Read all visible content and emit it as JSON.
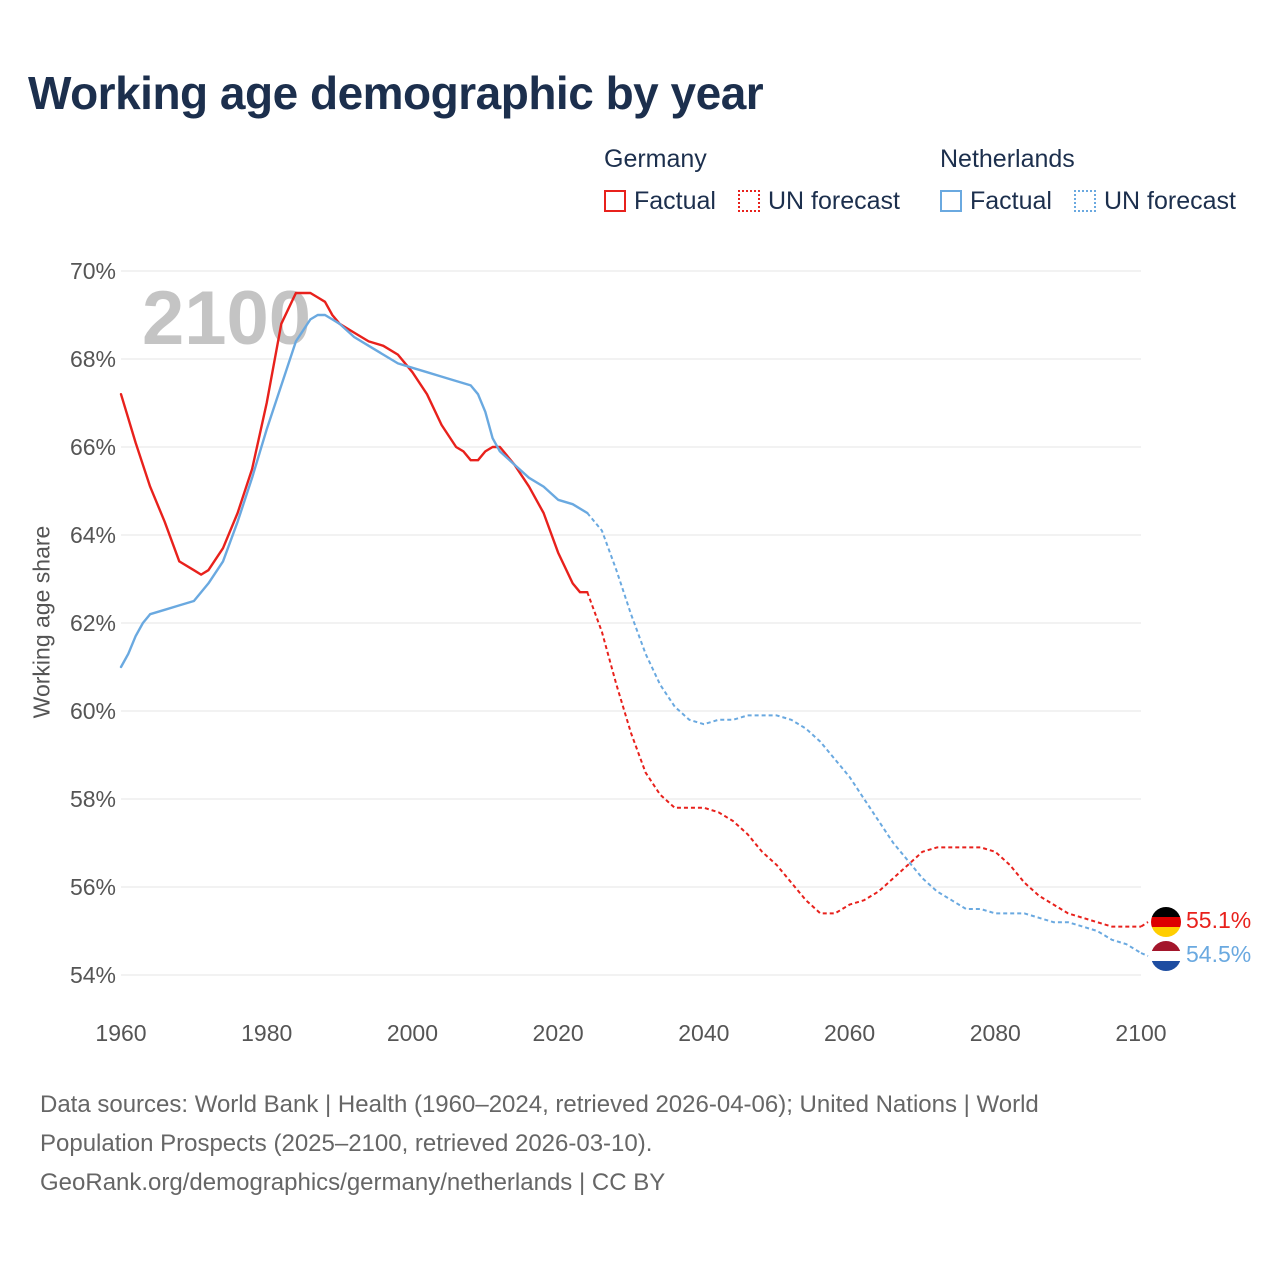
{
  "title": "Working age demographic by year",
  "legend": {
    "groups": [
      {
        "name": "Germany",
        "color": "#e8211c",
        "items": [
          {
            "label": "Factual",
            "style": "solid"
          },
          {
            "label": "UN forecast",
            "style": "dotted"
          }
        ]
      },
      {
        "name": "Netherlands",
        "color": "#6aa9e0",
        "items": [
          {
            "label": "Factual",
            "style": "solid"
          },
          {
            "label": "UN forecast",
            "style": "dotted"
          }
        ]
      }
    ]
  },
  "year_overlay": "2100",
  "end_labels": {
    "germany": "55.1%",
    "netherlands": "54.5%"
  },
  "footer": {
    "line1": "Data sources: World Bank | Health (1960–2024, retrieved 2026-04-06); United Nations | World",
    "line2": "Population Prospects (2025–2100, retrieved 2026-03-10).",
    "line3": "GeoRank.org/demographics/germany/netherlands | CC BY"
  },
  "chart_data": {
    "type": "line",
    "title": "Working age demographic by year",
    "xlabel": "",
    "ylabel": "Working age share",
    "xlim": [
      1960,
      2100
    ],
    "ylim": [
      54,
      70
    ],
    "x_ticks": [
      1960,
      1980,
      2000,
      2020,
      2040,
      2060,
      2080,
      2100
    ],
    "y_ticks": [
      54,
      56,
      58,
      60,
      62,
      64,
      66,
      68,
      70
    ],
    "y_tick_labels": [
      "54%",
      "56%",
      "58%",
      "60%",
      "62%",
      "64%",
      "66%",
      "68%",
      "70%"
    ],
    "x_tick_labels": [
      "1960",
      "1980",
      "2000",
      "2020",
      "2040",
      "2060",
      "2080",
      "2100"
    ],
    "grid": "horizontal",
    "series": [
      {
        "name": "Germany",
        "kind": "Factual",
        "color": "#e8211c",
        "style": "solid",
        "x": [
          1960,
          1962,
          1964,
          1966,
          1968,
          1970,
          1971,
          1972,
          1974,
          1976,
          1978,
          1980,
          1982,
          1984,
          1985,
          1986,
          1987,
          1988,
          1989,
          1990,
          1992,
          1994,
          1996,
          1998,
          2000,
          2002,
          2004,
          2006,
          2007,
          2008,
          2009,
          2010,
          2011,
          2012,
          2014,
          2016,
          2018,
          2020,
          2022,
          2023,
          2024
        ],
        "y": [
          67.2,
          66.1,
          65.1,
          64.3,
          63.4,
          63.2,
          63.1,
          63.2,
          63.7,
          64.5,
          65.5,
          67.0,
          68.8,
          69.5,
          69.5,
          69.5,
          69.4,
          69.3,
          69.0,
          68.8,
          68.6,
          68.4,
          68.3,
          68.1,
          67.7,
          67.2,
          66.5,
          66.0,
          65.9,
          65.7,
          65.7,
          65.9,
          66.0,
          66.0,
          65.6,
          65.1,
          64.5,
          63.6,
          62.9,
          62.7,
          62.7
        ]
      },
      {
        "name": "Germany",
        "kind": "UN forecast",
        "color": "#e8211c",
        "style": "dotted",
        "x": [
          2024,
          2026,
          2028,
          2030,
          2032,
          2034,
          2036,
          2038,
          2040,
          2042,
          2044,
          2046,
          2048,
          2050,
          2052,
          2054,
          2056,
          2058,
          2060,
          2062,
          2064,
          2066,
          2068,
          2070,
          2072,
          2074,
          2076,
          2078,
          2080,
          2082,
          2084,
          2086,
          2088,
          2090,
          2092,
          2094,
          2096,
          2098,
          2100
        ],
        "y": [
          62.7,
          61.8,
          60.6,
          59.5,
          58.6,
          58.1,
          57.8,
          57.8,
          57.8,
          57.7,
          57.5,
          57.2,
          56.8,
          56.5,
          56.1,
          55.7,
          55.4,
          55.4,
          55.6,
          55.7,
          55.9,
          56.2,
          56.5,
          56.8,
          56.9,
          56.9,
          56.9,
          56.9,
          56.8,
          56.5,
          56.1,
          55.8,
          55.6,
          55.4,
          55.3,
          55.2,
          55.1,
          55.1,
          55.1
        ]
      },
      {
        "name": "Netherlands",
        "kind": "Factual",
        "color": "#6aa9e0",
        "style": "solid",
        "x": [
          1960,
          1961,
          1962,
          1963,
          1964,
          1966,
          1968,
          1970,
          1972,
          1974,
          1976,
          1978,
          1980,
          1982,
          1984,
          1986,
          1987,
          1988,
          1989,
          1990,
          1992,
          1994,
          1996,
          1998,
          2000,
          2002,
          2004,
          2006,
          2008,
          2009,
          2010,
          2011,
          2012,
          2014,
          2016,
          2018,
          2020,
          2022,
          2024
        ],
        "y": [
          61.0,
          61.3,
          61.7,
          62.0,
          62.2,
          62.3,
          62.4,
          62.5,
          62.9,
          63.4,
          64.3,
          65.3,
          66.4,
          67.4,
          68.4,
          68.9,
          69.0,
          69.0,
          68.9,
          68.8,
          68.5,
          68.3,
          68.1,
          67.9,
          67.8,
          67.7,
          67.6,
          67.5,
          67.4,
          67.2,
          66.8,
          66.2,
          65.9,
          65.6,
          65.3,
          65.1,
          64.8,
          64.7,
          64.5
        ]
      },
      {
        "name": "Netherlands",
        "kind": "UN forecast",
        "color": "#6aa9e0",
        "style": "dotted",
        "x": [
          2024,
          2026,
          2028,
          2030,
          2032,
          2034,
          2036,
          2038,
          2040,
          2042,
          2044,
          2046,
          2048,
          2050,
          2052,
          2054,
          2056,
          2058,
          2060,
          2062,
          2064,
          2066,
          2068,
          2070,
          2072,
          2074,
          2076,
          2078,
          2080,
          2082,
          2084,
          2086,
          2088,
          2090,
          2092,
          2094,
          2096,
          2098,
          2100
        ],
        "y": [
          64.5,
          64.1,
          63.2,
          62.2,
          61.3,
          60.6,
          60.1,
          59.8,
          59.7,
          59.8,
          59.8,
          59.9,
          59.9,
          59.9,
          59.8,
          59.6,
          59.3,
          58.9,
          58.5,
          58.0,
          57.5,
          57.0,
          56.6,
          56.2,
          55.9,
          55.7,
          55.5,
          55.5,
          55.4,
          55.4,
          55.4,
          55.3,
          55.2,
          55.2,
          55.1,
          55.0,
          54.8,
          54.7,
          54.5
        ]
      }
    ]
  }
}
